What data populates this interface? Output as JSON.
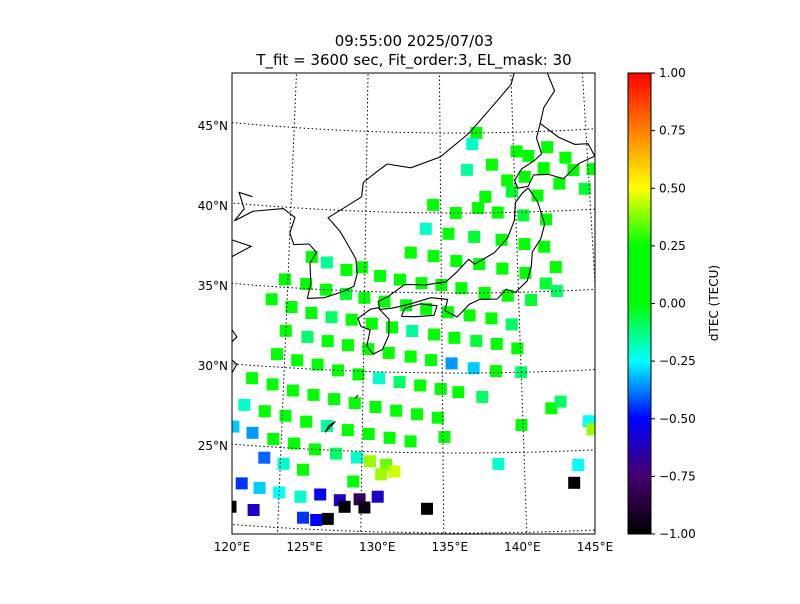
{
  "chart_data": {
    "type": "heatmap",
    "title_line1": "09:55:00 2025/07/03",
    "title_line2": "T_fit = 3600 sec, Fit_order:3, EL_mask: 30",
    "projection": "map",
    "xlim": [
      120,
      145
    ],
    "ylim": [
      20,
      49
    ],
    "x_ticks": [
      120,
      125,
      130,
      135,
      140,
      145
    ],
    "x_tick_labels": [
      "120°E",
      "125°E",
      "130°E",
      "135°E",
      "140°E",
      "145°E"
    ],
    "y_ticks": [
      25,
      30,
      35,
      40,
      45
    ],
    "y_tick_labels": [
      "25°N",
      "30°N",
      "35°N",
      "40°N",
      "45°N"
    ],
    "grid": "dotted",
    "colorbar": {
      "label": "dTEC (TECU)",
      "min": -1.0,
      "max": 1.0,
      "ticks": [
        1.0,
        0.75,
        0.5,
        0.25,
        0.0,
        -0.25,
        -0.5,
        -0.75,
        -1.0
      ],
      "tick_labels": [
        "1.00",
        "0.75",
        "0.50",
        "0.25",
        "0.00",
        "−0.25",
        "−0.50",
        "−0.75",
        "−1.00"
      ],
      "colormap": "rainbow-to-black"
    },
    "points": [
      {
        "lon": 137.5,
        "lat": 45.0,
        "v": 0.05
      },
      {
        "lon": 137.2,
        "lat": 44.3,
        "v": -0.2
      },
      {
        "lon": 138.5,
        "lat": 43.0,
        "v": 0.0
      },
      {
        "lon": 136.8,
        "lat": 42.7,
        "v": -0.15
      },
      {
        "lon": 140.2,
        "lat": 43.8,
        "v": 0.0
      },
      {
        "lon": 141.0,
        "lat": 43.5,
        "v": 0.1
      },
      {
        "lon": 142.3,
        "lat": 44.0,
        "v": 0.05
      },
      {
        "lon": 143.5,
        "lat": 43.3,
        "v": 0.0
      },
      {
        "lon": 142.0,
        "lat": 42.7,
        "v": 0.0
      },
      {
        "lon": 140.7,
        "lat": 42.2,
        "v": 0.05
      },
      {
        "lon": 139.5,
        "lat": 42.0,
        "v": 0.0
      },
      {
        "lon": 144.0,
        "lat": 42.5,
        "v": 0.05
      },
      {
        "lon": 145.3,
        "lat": 42.5,
        "v": 0.05
      },
      {
        "lon": 138.0,
        "lat": 41.0,
        "v": 0.0
      },
      {
        "lon": 139.8,
        "lat": 41.3,
        "v": -0.05
      },
      {
        "lon": 141.5,
        "lat": 41.0,
        "v": 0.0
      },
      {
        "lon": 143.0,
        "lat": 41.7,
        "v": 0.0
      },
      {
        "lon": 144.7,
        "lat": 41.3,
        "v": -0.05
      },
      {
        "lon": 134.5,
        "lat": 40.5,
        "v": 0.0
      },
      {
        "lon": 136.0,
        "lat": 40.0,
        "v": 0.1
      },
      {
        "lon": 137.5,
        "lat": 40.3,
        "v": 0.0
      },
      {
        "lon": 138.8,
        "lat": 40.0,
        "v": 0.0
      },
      {
        "lon": 140.5,
        "lat": 39.8,
        "v": -0.05
      },
      {
        "lon": 142.0,
        "lat": 39.5,
        "v": 0.1
      },
      {
        "lon": 134.0,
        "lat": 39.0,
        "v": -0.2
      },
      {
        "lon": 135.5,
        "lat": 38.7,
        "v": 0.0
      },
      {
        "lon": 137.2,
        "lat": 38.5,
        "v": -0.05
      },
      {
        "lon": 139.0,
        "lat": 38.3,
        "v": 0.15
      },
      {
        "lon": 140.5,
        "lat": 38.0,
        "v": 0.05
      },
      {
        "lon": 141.8,
        "lat": 37.8,
        "v": 0.1
      },
      {
        "lon": 142.5,
        "lat": 36.5,
        "v": 0.05
      },
      {
        "lon": 133.0,
        "lat": 37.5,
        "v": 0.05
      },
      {
        "lon": 134.5,
        "lat": 37.3,
        "v": 0.05
      },
      {
        "lon": 136.0,
        "lat": 37.0,
        "v": 0.1
      },
      {
        "lon": 137.5,
        "lat": 36.8,
        "v": 0.05
      },
      {
        "lon": 139.0,
        "lat": 36.5,
        "v": 0.05
      },
      {
        "lon": 140.5,
        "lat": 36.2,
        "v": 0.0
      },
      {
        "lon": 141.8,
        "lat": 35.5,
        "v": -0.05
      },
      {
        "lon": 142.5,
        "lat": 35.0,
        "v": -0.1
      },
      {
        "lon": 126.5,
        "lat": 37.0,
        "v": 0.05
      },
      {
        "lon": 127.5,
        "lat": 36.7,
        "v": -0.15
      },
      {
        "lon": 128.8,
        "lat": 36.3,
        "v": 0.0
      },
      {
        "lon": 129.8,
        "lat": 36.5,
        "v": 0.05
      },
      {
        "lon": 131.0,
        "lat": 36.0,
        "v": 0.05
      },
      {
        "lon": 132.3,
        "lat": 35.8,
        "v": 0.05
      },
      {
        "lon": 133.7,
        "lat": 35.6,
        "v": 0.05
      },
      {
        "lon": 135.0,
        "lat": 35.5,
        "v": 0.1
      },
      {
        "lon": 136.3,
        "lat": 35.3,
        "v": 0.1
      },
      {
        "lon": 137.8,
        "lat": 35.0,
        "v": 0.05
      },
      {
        "lon": 139.3,
        "lat": 34.8,
        "v": 0.0
      },
      {
        "lon": 140.8,
        "lat": 34.5,
        "v": -0.05
      },
      {
        "lon": 124.8,
        "lat": 35.5,
        "v": 0.05
      },
      {
        "lon": 126.2,
        "lat": 35.3,
        "v": 0.1
      },
      {
        "lon": 127.5,
        "lat": 35.0,
        "v": 0.0
      },
      {
        "lon": 128.8,
        "lat": 34.8,
        "v": -0.05
      },
      {
        "lon": 130.0,
        "lat": 34.6,
        "v": 0.05
      },
      {
        "lon": 131.3,
        "lat": 34.4,
        "v": 0.05
      },
      {
        "lon": 132.7,
        "lat": 34.2,
        "v": 0.0
      },
      {
        "lon": 134.0,
        "lat": 34.0,
        "v": 0.1
      },
      {
        "lon": 135.4,
        "lat": 33.8,
        "v": 0.05
      },
      {
        "lon": 136.8,
        "lat": 33.6,
        "v": 0.05
      },
      {
        "lon": 138.2,
        "lat": 33.4,
        "v": 0.0
      },
      {
        "lon": 139.5,
        "lat": 33.0,
        "v": -0.1
      },
      {
        "lon": 124.0,
        "lat": 34.2,
        "v": 0.1
      },
      {
        "lon": 125.3,
        "lat": 33.8,
        "v": 0.05
      },
      {
        "lon": 126.6,
        "lat": 33.5,
        "v": 0.0
      },
      {
        "lon": 127.9,
        "lat": 33.3,
        "v": -0.1
      },
      {
        "lon": 129.2,
        "lat": 33.2,
        "v": 0.0
      },
      {
        "lon": 130.5,
        "lat": 33.0,
        "v": 0.05
      },
      {
        "lon": 131.8,
        "lat": 32.8,
        "v": 0.0
      },
      {
        "lon": 133.1,
        "lat": 32.6,
        "v": -0.15
      },
      {
        "lon": 134.5,
        "lat": 32.4,
        "v": 0.0
      },
      {
        "lon": 135.8,
        "lat": 32.2,
        "v": 0.05
      },
      {
        "lon": 137.2,
        "lat": 32.0,
        "v": -0.05
      },
      {
        "lon": 138.5,
        "lat": 31.8,
        "v": 0.0
      },
      {
        "lon": 139.8,
        "lat": 31.5,
        "v": 0.1
      },
      {
        "lon": 125.0,
        "lat": 32.3,
        "v": 0.05
      },
      {
        "lon": 126.4,
        "lat": 32.0,
        "v": -0.1
      },
      {
        "lon": 127.7,
        "lat": 31.8,
        "v": 0.05
      },
      {
        "lon": 129.0,
        "lat": 31.6,
        "v": 0.0
      },
      {
        "lon": 130.3,
        "lat": 31.4,
        "v": 0.05
      },
      {
        "lon": 131.6,
        "lat": 31.2,
        "v": 0.1
      },
      {
        "lon": 133.0,
        "lat": 31.0,
        "v": 0.05
      },
      {
        "lon": 134.3,
        "lat": 30.8,
        "v": 0.0
      },
      {
        "lon": 135.6,
        "lat": 30.6,
        "v": -0.35
      },
      {
        "lon": 137.0,
        "lat": 30.3,
        "v": -0.3
      },
      {
        "lon": 138.4,
        "lat": 30.1,
        "v": 0.05
      },
      {
        "lon": 140.0,
        "lat": 30.0,
        "v": -0.1
      },
      {
        "lon": 124.5,
        "lat": 30.8,
        "v": 0.05
      },
      {
        "lon": 125.8,
        "lat": 30.5,
        "v": 0.05
      },
      {
        "lon": 127.1,
        "lat": 30.3,
        "v": 0.0
      },
      {
        "lon": 128.4,
        "lat": 30.0,
        "v": 0.05
      },
      {
        "lon": 129.7,
        "lat": 29.8,
        "v": 0.1
      },
      {
        "lon": 131.0,
        "lat": 29.6,
        "v": -0.2
      },
      {
        "lon": 132.3,
        "lat": 29.4,
        "v": -0.1
      },
      {
        "lon": 133.6,
        "lat": 29.2,
        "v": 0.05
      },
      {
        "lon": 134.9,
        "lat": 29.0,
        "v": 0.05
      },
      {
        "lon": 136.0,
        "lat": 28.8,
        "v": 0.0
      },
      {
        "lon": 137.5,
        "lat": 28.5,
        "v": -0.1
      },
      {
        "lon": 123.0,
        "lat": 29.2,
        "v": 0.1
      },
      {
        "lon": 124.3,
        "lat": 28.9,
        "v": 0.05
      },
      {
        "lon": 125.6,
        "lat": 28.6,
        "v": 0.0
      },
      {
        "lon": 126.9,
        "lat": 28.4,
        "v": 0.05
      },
      {
        "lon": 128.2,
        "lat": 28.2,
        "v": 0.1
      },
      {
        "lon": 129.5,
        "lat": 28.0,
        "v": 0.15
      },
      {
        "lon": 130.8,
        "lat": 27.8,
        "v": 0.05
      },
      {
        "lon": 132.1,
        "lat": 27.6,
        "v": 0.0
      },
      {
        "lon": 133.4,
        "lat": 27.4,
        "v": 0.05
      },
      {
        "lon": 134.7,
        "lat": 27.2,
        "v": 0.0
      },
      {
        "lon": 121.3,
        "lat": 27.8,
        "v": 0.1
      },
      {
        "lon": 122.6,
        "lat": 27.5,
        "v": -0.2
      },
      {
        "lon": 123.9,
        "lat": 27.2,
        "v": 0.05
      },
      {
        "lon": 125.2,
        "lat": 27.0,
        "v": 0.05
      },
      {
        "lon": 126.5,
        "lat": 26.7,
        "v": 0.05
      },
      {
        "lon": 127.8,
        "lat": 26.5,
        "v": -0.15
      },
      {
        "lon": 129.1,
        "lat": 26.3,
        "v": 0.05
      },
      {
        "lon": 130.4,
        "lat": 26.1,
        "v": 0.1
      },
      {
        "lon": 131.7,
        "lat": 25.9,
        "v": 0.05
      },
      {
        "lon": 133.0,
        "lat": 25.7,
        "v": 0.05
      },
      {
        "lon": 120.8,
        "lat": 26.3,
        "v": 0.1
      },
      {
        "lon": 122.0,
        "lat": 26.1,
        "v": -0.3
      },
      {
        "lon": 123.2,
        "lat": 25.8,
        "v": -0.35
      },
      {
        "lon": 124.5,
        "lat": 25.5,
        "v": 0.05
      },
      {
        "lon": 125.8,
        "lat": 25.3,
        "v": 0.05
      },
      {
        "lon": 127.1,
        "lat": 25.0,
        "v": 0.0
      },
      {
        "lon": 128.4,
        "lat": 24.8,
        "v": -0.1
      },
      {
        "lon": 129.7,
        "lat": 24.6,
        "v": -0.2
      },
      {
        "lon": 130.5,
        "lat": 24.4,
        "v": 0.4
      },
      {
        "lon": 131.5,
        "lat": 24.2,
        "v": 0.35
      },
      {
        "lon": 124.0,
        "lat": 24.3,
        "v": -0.4
      },
      {
        "lon": 125.2,
        "lat": 24.0,
        "v": -0.2
      },
      {
        "lon": 126.4,
        "lat": 23.7,
        "v": 0.1
      },
      {
        "lon": 129.5,
        "lat": 23.1,
        "v": 0.05
      },
      {
        "lon": 131.2,
        "lat": 23.6,
        "v": 0.4
      },
      {
        "lon": 132.0,
        "lat": 23.8,
        "v": 0.45
      },
      {
        "lon": 121.5,
        "lat": 22.8,
        "v": -0.5
      },
      {
        "lon": 122.7,
        "lat": 22.6,
        "v": -0.45
      },
      {
        "lon": 123.8,
        "lat": 22.4,
        "v": -0.3
      },
      {
        "lon": 125.0,
        "lat": 22.2,
        "v": -0.25
      },
      {
        "lon": 126.3,
        "lat": 22.0,
        "v": -0.2
      },
      {
        "lon": 127.5,
        "lat": 22.2,
        "v": -0.5
      },
      {
        "lon": 128.7,
        "lat": 21.9,
        "v": -0.6
      },
      {
        "lon": 129.9,
        "lat": 22.0,
        "v": -0.8
      },
      {
        "lon": 131.0,
        "lat": 22.2,
        "v": -0.6
      },
      {
        "lon": 121.3,
        "lat": 21.2,
        "v": -1.0
      },
      {
        "lon": 122.1,
        "lat": 21.1,
        "v": -1.0
      },
      {
        "lon": 123.5,
        "lat": 21.0,
        "v": -0.6
      },
      {
        "lon": 126.5,
        "lat": 20.7,
        "v": -0.45
      },
      {
        "lon": 127.3,
        "lat": 20.6,
        "v": -0.5
      },
      {
        "lon": 128.0,
        "lat": 20.7,
        "v": -1.0
      },
      {
        "lon": 129.0,
        "lat": 21.5,
        "v": -1.0
      },
      {
        "lon": 130.2,
        "lat": 21.5,
        "v": -0.95
      },
      {
        "lon": 134.0,
        "lat": 21.5,
        "v": -1.0
      },
      {
        "lon": 143.0,
        "lat": 23.0,
        "v": -1.0
      },
      {
        "lon": 143.3,
        "lat": 24.1,
        "v": -0.25
      },
      {
        "lon": 144.1,
        "lat": 26.8,
        "v": -0.25
      },
      {
        "lon": 144.3,
        "lat": 26.3,
        "v": 0.4
      },
      {
        "lon": 141.8,
        "lat": 27.7,
        "v": 0.05
      },
      {
        "lon": 142.4,
        "lat": 28.1,
        "v": -0.1
      },
      {
        "lon": 138.4,
        "lat": 24.3,
        "v": -0.2
      },
      {
        "lon": 139.9,
        "lat": 26.7,
        "v": 0.05
      },
      {
        "lon": 135.1,
        "lat": 26.0,
        "v": 0.1
      }
    ]
  }
}
